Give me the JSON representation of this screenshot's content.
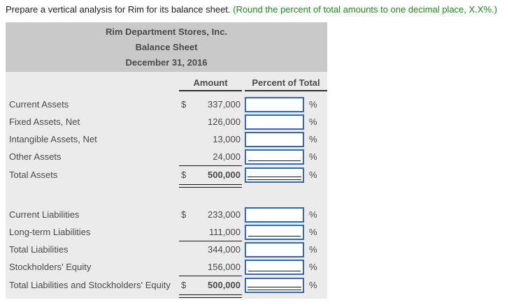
{
  "instruction": {
    "main": "Prepare a vertical analysis for Rim for its balance sheet.",
    "note": " (Round the percent of total amounts to one decimal place, X.X%.)"
  },
  "statement": {
    "title_lines": [
      "Rim Department Stores, Inc.",
      "Balance Sheet",
      "December 31, 2016"
    ],
    "columns": {
      "amount": "Amount",
      "percent": "Percent of Total"
    },
    "percent_symbol": "%",
    "rows": [
      {
        "label": "Current Assets",
        "dollar": "$",
        "amount": "337,000",
        "percent_value": "",
        "rule": "none",
        "bold": false
      },
      {
        "label": "Fixed Assets, Net",
        "dollar": "",
        "amount": "126,000",
        "percent_value": "",
        "rule": "none",
        "bold": false
      },
      {
        "label": "Intangible Assets, Net",
        "dollar": "",
        "amount": "13,000",
        "percent_value": "",
        "rule": "none",
        "bold": false
      },
      {
        "label": "Other Assets",
        "dollar": "",
        "amount": "24,000",
        "percent_value": "",
        "rule": "single",
        "bold": false
      },
      {
        "label": "Total Assets",
        "dollar": "$",
        "amount": "500,000",
        "percent_value": "",
        "rule": "double",
        "bold": true
      },
      {
        "label": "Current Liabilities",
        "dollar": "$",
        "amount": "233,000",
        "percent_value": "",
        "rule": "none",
        "bold": false
      },
      {
        "label": "Long-term Liabilities",
        "dollar": "",
        "amount": "111,000",
        "percent_value": "",
        "rule": "single",
        "bold": false
      },
      {
        "label": "Total Liabilities",
        "dollar": "",
        "amount": "344,000",
        "percent_value": "",
        "rule": "none",
        "bold": false
      },
      {
        "label": "Stockholders' Equity",
        "dollar": "",
        "amount": "156,000",
        "percent_value": "",
        "rule": "single",
        "bold": false
      },
      {
        "label": "Total Liabilities and Stockholders' Equity",
        "dollar": "$",
        "amount": "500,000",
        "percent_value": "",
        "rule": "double",
        "bold": true
      }
    ]
  },
  "colors": {
    "title_bg": "#c9c9c9",
    "body_bg": "#ebebeb",
    "table_text": "#4a4a4a",
    "input_border": "#3767b1",
    "note_green": "#1e8a1e"
  }
}
